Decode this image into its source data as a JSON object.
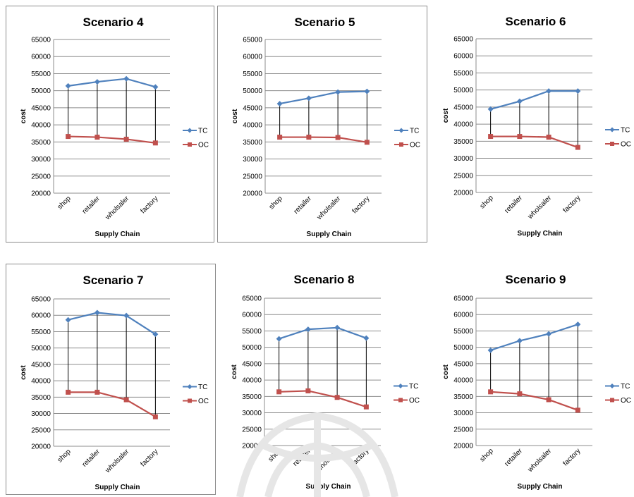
{
  "colors": {
    "tc": "#4f81bd",
    "oc": "#c0504d",
    "connector": "#000000",
    "gridline": "#8c8c8c"
  },
  "chart_data": [
    {
      "type": "line",
      "title": "Scenario 4",
      "xlabel": "Supply Chain",
      "ylabel": "cost",
      "categories": [
        "shop",
        "retailer",
        "wholsaler",
        "factory"
      ],
      "ylim": [
        20000,
        65000
      ],
      "yticks": [
        "20000",
        "25000",
        "30000",
        "35000",
        "40000",
        "45000",
        "50000",
        "55000",
        "60000",
        "65000"
      ],
      "grid": true,
      "legend": "right",
      "series": [
        {
          "name": "TC",
          "values": [
            51400,
            52600,
            53500,
            51100
          ]
        },
        {
          "name": "OC",
          "values": [
            36600,
            36400,
            35800,
            34700
          ]
        }
      ]
    },
    {
      "type": "line",
      "title": "Scenario 5",
      "xlabel": "Supply Chain",
      "ylabel": "cost",
      "categories": [
        "shop",
        "retailer",
        "wholsaler",
        "factory"
      ],
      "ylim": [
        20000,
        65000
      ],
      "yticks": [
        "20000",
        "25000",
        "30000",
        "35000",
        "40000",
        "45000",
        "50000",
        "55000",
        "60000",
        "65000"
      ],
      "grid": true,
      "legend": "right",
      "series": [
        {
          "name": "TC",
          "values": [
            46200,
            47800,
            49600,
            49800
          ]
        },
        {
          "name": "OC",
          "values": [
            36400,
            36400,
            36300,
            34900
          ]
        }
      ]
    },
    {
      "type": "line",
      "title": "Scenario 6",
      "xlabel": "Supply Chain",
      "ylabel": "cost",
      "categories": [
        "shop",
        "retailer",
        "wholsaler",
        "factory"
      ],
      "ylim": [
        20000,
        65000
      ],
      "yticks": [
        "20000",
        "25000",
        "30000",
        "35000",
        "40000",
        "45000",
        "50000",
        "55000",
        "60000",
        "65000"
      ],
      "grid": true,
      "legend": "right",
      "series": [
        {
          "name": "TC",
          "values": [
            44400,
            46700,
            49700,
            49700
          ]
        },
        {
          "name": "OC",
          "values": [
            36400,
            36400,
            36200,
            33200
          ]
        }
      ]
    },
    {
      "type": "line",
      "title": "Scenario 7",
      "xlabel": "Supply Chain",
      "ylabel": "cost",
      "categories": [
        "shop",
        "retailer",
        "wholsaler",
        "factory"
      ],
      "ylim": [
        20000,
        65000
      ],
      "yticks": [
        "20000",
        "25000",
        "30000",
        "35000",
        "40000",
        "45000",
        "50000",
        "55000",
        "60000",
        "65000"
      ],
      "grid": true,
      "legend": "right",
      "series": [
        {
          "name": "TC",
          "values": [
            58600,
            60800,
            59900,
            54200
          ]
        },
        {
          "name": "OC",
          "values": [
            36500,
            36500,
            34200,
            29000
          ]
        }
      ]
    },
    {
      "type": "line",
      "title": "Scenario 8",
      "xlabel": "Supply Chain",
      "ylabel": "cost",
      "categories": [
        "shop",
        "retailer",
        "wholsaler",
        "factory"
      ],
      "ylim": [
        20000,
        65000
      ],
      "yticks": [
        "20000",
        "25000",
        "30000",
        "35000",
        "40000",
        "45000",
        "50000",
        "55000",
        "60000",
        "65000"
      ],
      "grid": true,
      "legend": "right",
      "series": [
        {
          "name": "TC",
          "values": [
            52600,
            55500,
            56000,
            52800
          ]
        },
        {
          "name": "OC",
          "values": [
            36400,
            36700,
            34700,
            31800
          ]
        }
      ]
    },
    {
      "type": "line",
      "title": "Scenario 9",
      "xlabel": "Supply Chain",
      "ylabel": "cost",
      "categories": [
        "shop",
        "retailer",
        "wholsaler",
        "factory"
      ],
      "ylim": [
        20000,
        65000
      ],
      "yticks": [
        "20000",
        "25000",
        "30000",
        "35000",
        "40000",
        "45000",
        "50000",
        "55000",
        "60000",
        "65000"
      ],
      "grid": true,
      "legend": "right",
      "series": [
        {
          "name": "TC",
          "values": [
            49100,
            52000,
            54100,
            57000
          ]
        },
        {
          "name": "OC",
          "values": [
            36400,
            35800,
            34000,
            30800
          ]
        }
      ]
    }
  ]
}
